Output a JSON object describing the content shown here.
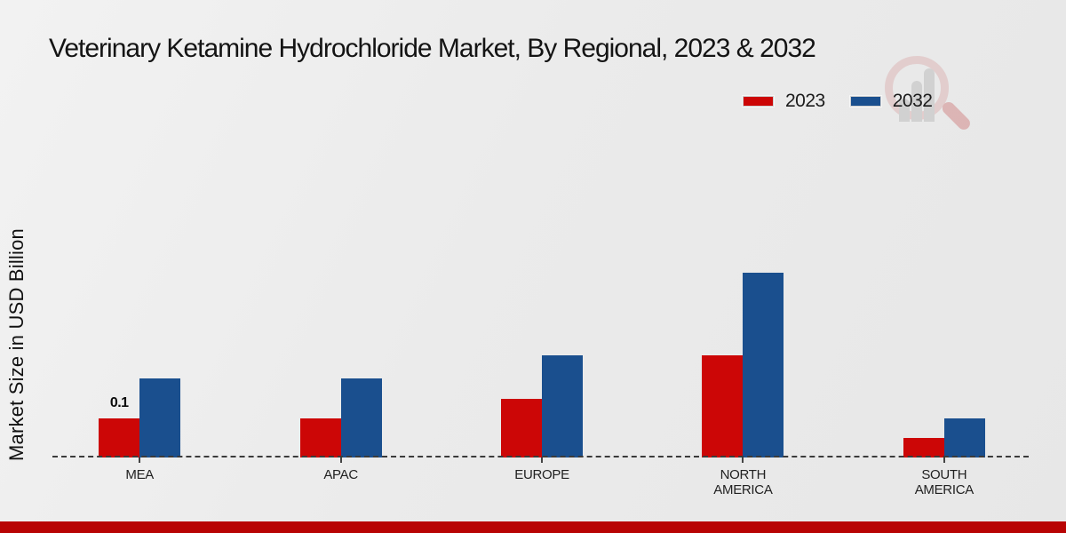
{
  "title": "Veterinary Ketamine Hydrochloride Market, By Regional, 2023 & 2032",
  "ylabel": "Market Size in USD Billion",
  "legend": {
    "position": "top-right",
    "items": [
      {
        "label": "2023",
        "color": "#cc0606"
      },
      {
        "label": "2032",
        "color": "#1a4f8e"
      }
    ]
  },
  "chart_data": {
    "type": "bar",
    "title": "Veterinary Ketamine Hydrochloride Market, By Regional, 2023 & 2032",
    "categories": [
      "MEA",
      "APAC",
      "EUROPE",
      "NORTH AMERICA",
      "SOUTH AMERICA"
    ],
    "series": [
      {
        "name": "2023",
        "color": "#cc0606",
        "values": [
          0.1,
          0.1,
          0.15,
          0.26,
          0.05
        ]
      },
      {
        "name": "2032",
        "color": "#1a4f8e",
        "values": [
          0.2,
          0.2,
          0.26,
          0.47,
          0.1
        ]
      }
    ],
    "data_labels": [
      {
        "series": "2023",
        "category": "MEA",
        "text": "0.1"
      }
    ],
    "xlabel": "",
    "ylabel": "Market Size in USD Billion",
    "ylim": [
      0,
      0.55
    ],
    "grid": false,
    "legend_position": "top-right",
    "baseline_style": "dashed"
  },
  "footer": {
    "band_color": "#b80404"
  },
  "watermark": {
    "name": "market-research-logo"
  }
}
